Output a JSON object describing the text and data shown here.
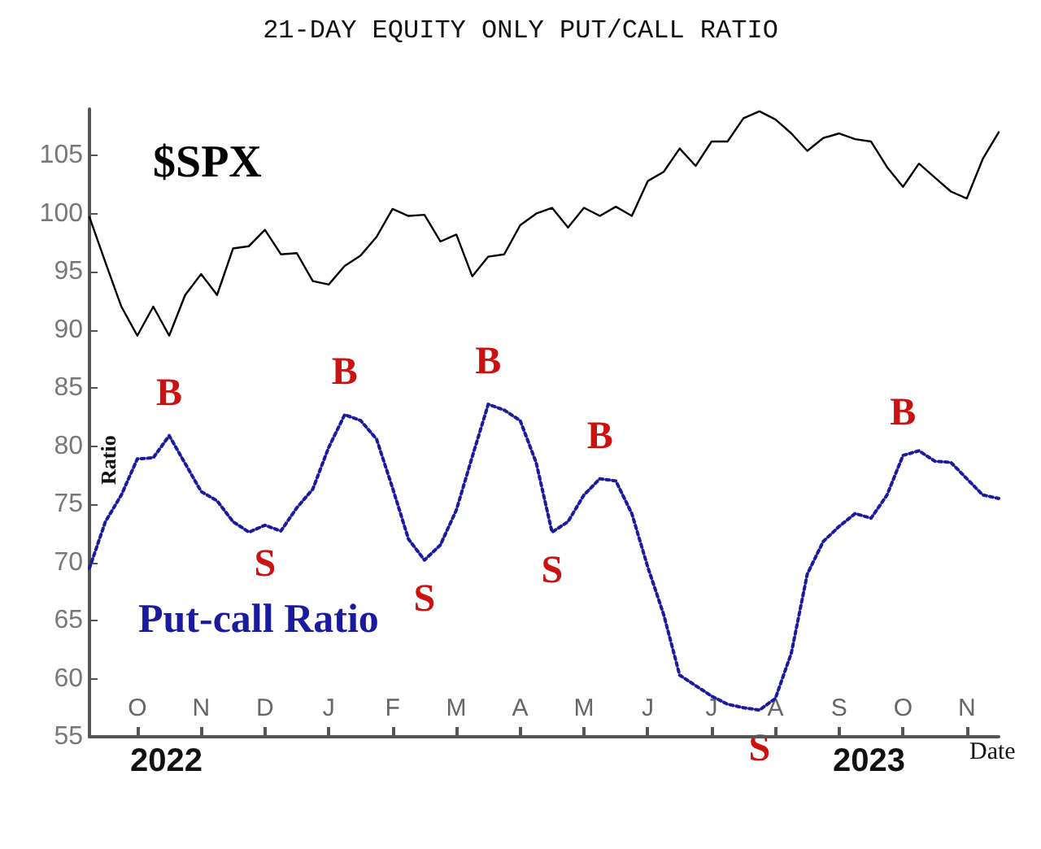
{
  "chart_data": {
    "type": "line",
    "title": "21-DAY EQUITY ONLY PUT/CALL RATIO",
    "xlabel": "Date",
    "ylabel": "Ratio",
    "categories": [
      null,
      null,
      null,
      "O",
      null,
      null,
      null,
      "N",
      null,
      null,
      null,
      "D",
      null,
      null,
      null,
      "J",
      null,
      null,
      null,
      "F",
      null,
      null,
      null,
      "M",
      null,
      null,
      null,
      "A",
      null,
      null,
      null,
      "M",
      null,
      null,
      null,
      "J",
      null,
      null,
      null,
      "J",
      null,
      null,
      null,
      "A",
      null,
      null,
      null,
      "S",
      null,
      null,
      null,
      "O",
      null,
      null,
      null,
      "N",
      null,
      null
    ],
    "ylim": [
      55,
      109
    ],
    "yticks": [
      55,
      60,
      65,
      70,
      75,
      80,
      85,
      90,
      95,
      100,
      105
    ],
    "grid": false,
    "legend": false,
    "series": [
      {
        "name": "$SPX",
        "color": "#000000",
        "line_style": "solid",
        "values": [
          99.7,
          95.8,
          92,
          89.5,
          92,
          89.5,
          93,
          94.8,
          93,
          97,
          97.2,
          98.6,
          96.5,
          96.6,
          94.2,
          93.9,
          95.5,
          96.4,
          98,
          100.4,
          99.8,
          99.9,
          97.6,
          98.2,
          94.6,
          96.3,
          96.5,
          99,
          100,
          100.5,
          98.8,
          100.5,
          99.8,
          100.6,
          99.8,
          102.8,
          103.6,
          105.6,
          104.1,
          106.2,
          106.2,
          108.2,
          108.8,
          108.1,
          106.9,
          105.4,
          106.5,
          106.9,
          106.4,
          106.2,
          104,
          102.3,
          104.3,
          103.1,
          101.9,
          101.3,
          104.7,
          107
        ]
      },
      {
        "name": "Put-call Ratio",
        "color": "#1a1a9c",
        "line_style": "dotted",
        "values": [
          69.5,
          73.5,
          75.8,
          78.9,
          79,
          80.9,
          78.5,
          76.1,
          75.3,
          73.5,
          72.6,
          73.2,
          72.7,
          74.7,
          76.3,
          79.9,
          82.7,
          82.2,
          80.6,
          76.4,
          72,
          70.2,
          71.5,
          74.5,
          79.1,
          83.6,
          83.1,
          82.2,
          78.6,
          72.6,
          73.5,
          75.8,
          77.2,
          77,
          74.2,
          69.6,
          65.5,
          60.3,
          59.4,
          58.5,
          57.8,
          57.5,
          57.3,
          58.3,
          62.2,
          69,
          71.8,
          73.1,
          74.2,
          73.8,
          75.8,
          79.2,
          79.6,
          78.7,
          78.6,
          77.2,
          75.8,
          75.5
        ]
      }
    ],
    "annotations": [
      {
        "text": "B",
        "y": 80.9
      },
      {
        "text": "B",
        "y": 82.7
      },
      {
        "text": "B",
        "y": 83.6
      },
      {
        "text": "B",
        "y": 77.2
      },
      {
        "text": "B",
        "y": 79.2
      },
      {
        "text": "S",
        "y": 73.2
      },
      {
        "text": "S",
        "y": 70.2
      },
      {
        "text": "S",
        "y": 72.6
      },
      {
        "text": "S",
        "y": 57.3
      },
      "2022",
      "2023"
    ]
  }
}
